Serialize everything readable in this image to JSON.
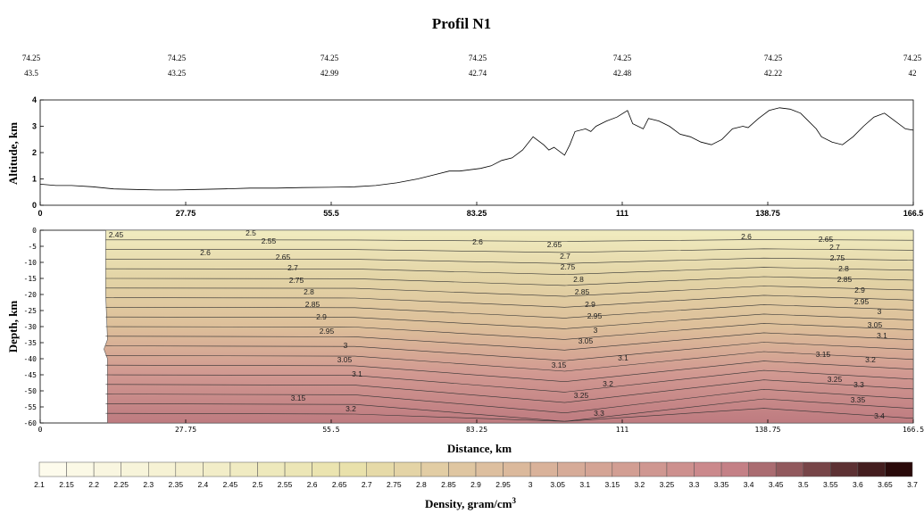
{
  "title": "Profil N1",
  "coords": {
    "row1": [
      "74.25",
      "74.25",
      "74.25",
      "74.25",
      "74.25",
      "74.25",
      "74.25"
    ],
    "row2": [
      "43.5",
      "43.25",
      "42.99",
      "42.74",
      "42.48",
      "42.22",
      "42"
    ]
  },
  "chart_data": [
    {
      "type": "line",
      "ylabel": "Altitude, km",
      "xlim": [
        0,
        166.5
      ],
      "ylim": [
        0,
        4
      ],
      "xticks": [
        "0",
        "27.75",
        "55.5",
        "83.25",
        "111",
        "138.75",
        "166.5"
      ],
      "yticks": [
        "0",
        "1",
        "2",
        "3",
        "4"
      ],
      "series": [
        {
          "x": [
            0,
            3,
            6,
            10,
            14,
            18,
            22,
            26,
            30,
            35,
            40,
            45,
            50,
            55,
            60,
            64,
            68,
            72,
            75,
            78,
            80,
            82,
            84,
            86,
            88,
            90,
            92,
            94,
            96,
            97,
            98,
            100,
            101,
            102,
            104,
            105,
            106,
            108,
            110,
            112,
            113,
            115,
            116,
            118,
            120,
            122,
            124,
            126,
            128,
            130,
            132,
            134,
            135,
            137,
            139,
            141,
            143,
            145,
            146,
            148,
            149,
            151,
            153,
            155,
            157,
            159,
            161,
            163,
            165,
            166.5
          ],
          "y": [
            0.8,
            0.75,
            0.75,
            0.7,
            0.62,
            0.6,
            0.58,
            0.58,
            0.6,
            0.62,
            0.65,
            0.65,
            0.67,
            0.68,
            0.7,
            0.75,
            0.85,
            1.0,
            1.15,
            1.3,
            1.3,
            1.35,
            1.4,
            1.5,
            1.7,
            1.8,
            2.1,
            2.6,
            2.3,
            2.1,
            2.2,
            1.9,
            2.3,
            2.8,
            2.9,
            2.8,
            3.0,
            3.2,
            3.35,
            3.6,
            3.1,
            2.9,
            3.3,
            3.2,
            3.0,
            2.7,
            2.6,
            2.4,
            2.3,
            2.5,
            2.9,
            3.0,
            2.95,
            3.3,
            3.6,
            3.7,
            3.65,
            3.5,
            3.3,
            2.9,
            2.6,
            2.4,
            2.3,
            2.6,
            3.0,
            3.35,
            3.5,
            3.2,
            2.9,
            2.85
          ]
        }
      ]
    },
    {
      "type": "contour",
      "xlabel": "Distance, km",
      "ylabel": "Depth, km",
      "xlim": [
        0,
        166.5
      ],
      "ylim": [
        -60,
        0
      ],
      "xticks": [
        "0",
        "27.75",
        "55.5",
        "83.25",
        "111",
        "138.75",
        "166.5"
      ],
      "yticks": [
        "0",
        "-5",
        "-10",
        "-15",
        "-20",
        "-25",
        "-30",
        "-35",
        "-40",
        "-45",
        "-50",
        "-55",
        "-60"
      ],
      "contour_labels": [
        "2.45",
        "2.5",
        "2.55",
        "2.6",
        "2.6",
        "2.6",
        "2.65",
        "2.65",
        "2.65",
        "2.7",
        "2.7",
        "2.7",
        "2.75",
        "2.75",
        "2.75",
        "2.8",
        "2.8",
        "2.8",
        "2.85",
        "2.85",
        "2.85",
        "2.9",
        "2.9",
        "2.9",
        "2.95",
        "2.95",
        "2.95",
        "3",
        "3",
        "3",
        "3.05",
        "3.05",
        "3.05",
        "3.1",
        "3.1",
        "3.1",
        "3.15",
        "3.15",
        "3.15",
        "3.2",
        "3.2",
        "3.2",
        "3.25",
        "3.25",
        "3.3",
        "3.3",
        "3.35",
        "3.4"
      ]
    }
  ],
  "colorbar": {
    "title": "Density, gram/cm",
    "title_sup": "3",
    "labels": [
      "2.1",
      "2.15",
      "2.2",
      "2.25",
      "2.3",
      "2.35",
      "2.4",
      "2.45",
      "2.5",
      "2.55",
      "2.6",
      "2.65",
      "2.7",
      "2.75",
      "2.8",
      "2.85",
      "2.9",
      "2.95",
      "3",
      "3.05",
      "3.1",
      "3.15",
      "3.2",
      "3.25",
      "3.3",
      "3.35",
      "3.4",
      "3.45",
      "3.5",
      "3.55",
      "3.6",
      "3.65",
      "3.7"
    ]
  },
  "colors": {
    "low": "#fdfbec",
    "mid": "#e9e2ab",
    "high": "#c9848a",
    "top": "#2a0a0a"
  }
}
